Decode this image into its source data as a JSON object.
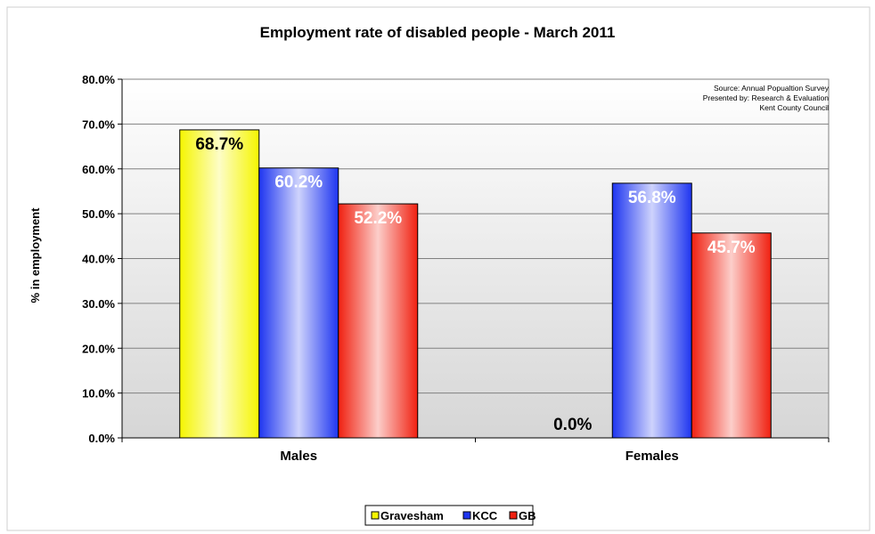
{
  "chart_data": {
    "type": "bar",
    "title": "Employment rate of disabled people - March 2011",
    "ylabel": "% in employment",
    "xlabel": "",
    "categories": [
      "Males",
      "Females"
    ],
    "series": [
      {
        "name": "Gravesham",
        "values": [
          68.7,
          0.0
        ],
        "labels": [
          "68.7%",
          "0.0%"
        ]
      },
      {
        "name": "KCC",
        "values": [
          60.2,
          56.8
        ],
        "labels": [
          "60.2%",
          "56.8%"
        ]
      },
      {
        "name": "GB",
        "values": [
          52.2,
          45.7
        ],
        "labels": [
          "52.2%",
          "45.7%"
        ]
      }
    ],
    "ylim": [
      0,
      80
    ],
    "yticks": [
      0,
      10,
      20,
      30,
      40,
      50,
      60,
      70,
      80
    ],
    "ytick_labels": [
      "0.0%",
      "10.0%",
      "20.0%",
      "30.0%",
      "40.0%",
      "50.0%",
      "60.0%",
      "70.0%",
      "80.0%"
    ],
    "grid": true,
    "legend_position": "bottom",
    "source_note": [
      "Source: Annual Popualtion Survey",
      "Presented by: Research & Evaluation",
      "Kent County Council"
    ]
  },
  "colors": {
    "Gravesham": "#f5f500",
    "KCC": "#1e35f0",
    "GB": "#f02010",
    "plot_background": "#e0e0e0",
    "plot_background_top": "#ffffff"
  }
}
